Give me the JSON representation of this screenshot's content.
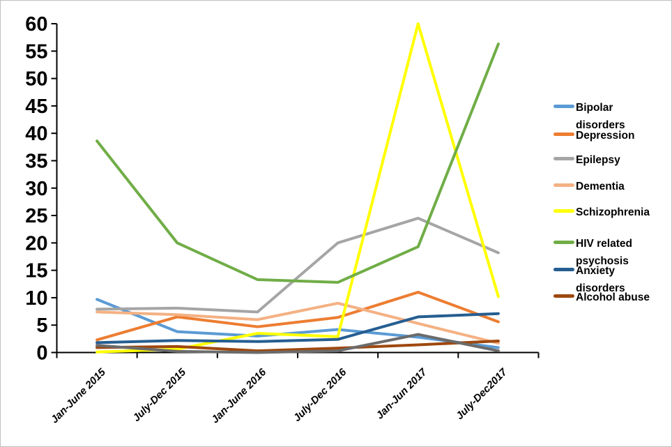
{
  "window": {
    "background_color": "#ffffff",
    "border_color": "#bfbfbf",
    "axis_color": "#000000"
  },
  "chart_data": {
    "type": "line",
    "title": "",
    "xlabel": "",
    "ylabel": "",
    "grid": false,
    "categories": [
      "Jan-June 2015",
      "July-Dec 2015",
      "Jan-June 2016",
      "July-Dec 2016",
      "Jan-Jun 2017",
      "July-Dec2017"
    ],
    "x_tick_label_rotation_deg": 45,
    "y_axis": {
      "min": 0,
      "max": 60,
      "step": 5
    },
    "series": [
      {
        "name": "Bipolar disorders",
        "color": "#5B9BD5",
        "values": [
          9.7,
          3.8,
          3.0,
          4.2,
          2.8,
          0.9
        ]
      },
      {
        "name": "Depression",
        "color": "#ED7D31",
        "values": [
          2.3,
          6.5,
          4.7,
          6.4,
          11.0,
          5.6
        ]
      },
      {
        "name": "Epilepsy",
        "color": "#A5A5A5",
        "values": [
          7.9,
          8.1,
          7.4,
          20.0,
          24.5,
          18.2
        ]
      },
      {
        "name": "Dementia",
        "color": "#F4B183",
        "values": [
          7.4,
          6.9,
          6.0,
          9.0,
          5.3,
          1.7
        ]
      },
      {
        "name": "Schizophrenia",
        "color": "#FFFF00",
        "values": [
          0.1,
          0.6,
          3.5,
          2.9,
          60.0,
          10.2
        ]
      },
      {
        "name": "HIV related psychosis",
        "color": "#70AD47",
        "values": [
          38.6,
          20.0,
          13.3,
          12.8,
          19.3,
          56.3
        ]
      },
      {
        "name": "Anxiety disorders",
        "color": "#255E91",
        "values": [
          1.8,
          2.2,
          2.0,
          2.4,
          6.5,
          7.1
        ]
      },
      {
        "name": "Alcohol abuse",
        "color": "#9E480E",
        "values": [
          0.9,
          1.1,
          0.3,
          0.8,
          1.4,
          2.1
        ]
      },
      {
        "name": "",
        "color": "#6B6B6B",
        "values": [
          1.3,
          0.2,
          0.0,
          0.3,
          3.3,
          0.3
        ]
      }
    ],
    "legend": {
      "position": "right",
      "entries": [
        "Bipolar disorders",
        "Depression",
        "Epilepsy",
        "Dementia",
        "Schizophrenia",
        "HIV related psychosis",
        "Anxiety disorders",
        "Alcohol abuse"
      ]
    }
  }
}
